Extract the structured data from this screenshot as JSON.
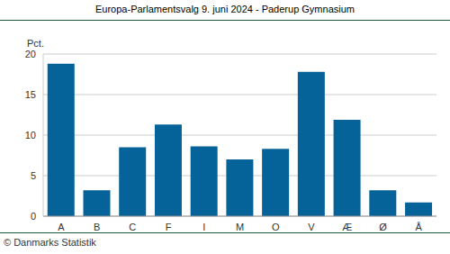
{
  "chart_data": {
    "type": "bar",
    "title": "Europa-Parlamentsvalg 9. juni 2024 - Paderup Gymnasium",
    "y_label": "Pct.",
    "source": "© Danmarks Statistik",
    "categories": [
      "A",
      "B",
      "C",
      "F",
      "I",
      "M",
      "O",
      "V",
      "Æ",
      "Ø",
      "Å"
    ],
    "values": [
      18.8,
      3.2,
      8.5,
      11.3,
      8.6,
      7.0,
      8.3,
      17.8,
      11.9,
      3.2,
      1.7
    ],
    "color": "#06639a",
    "ylim": [
      0,
      20
    ],
    "yticks": [
      0,
      5,
      10,
      15,
      20
    ],
    "grid": true
  }
}
